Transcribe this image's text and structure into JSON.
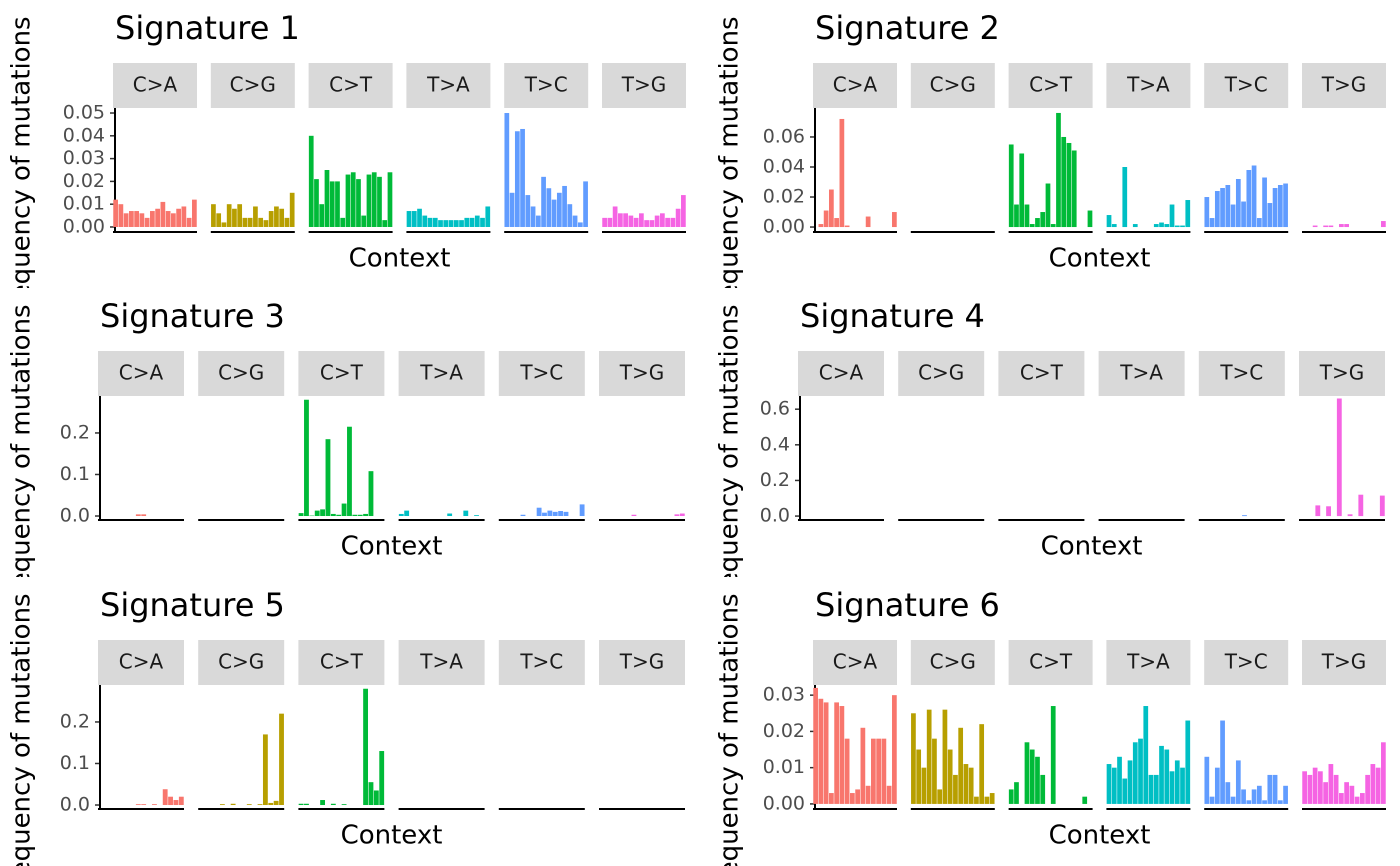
{
  "chart_data": [
    {
      "type": "bar",
      "title": "Signature 1",
      "xlabel": "Context",
      "ylabel": "Frequency of mutations",
      "ylim": [
        -0.0022,
        0.0522
      ],
      "yticks": [
        {
          "value": 0,
          "label": "0.00"
        },
        0.01,
        0.02,
        0.03,
        0.04,
        0.05
      ],
      "series": [
        {
          "name": "C>A",
          "color": "#F8766D",
          "values": [
            0.012,
            0.01,
            0.006,
            0.007,
            0.007,
            0.006,
            0.004,
            0.007,
            0.008,
            0.011,
            0.007,
            0.006,
            0.008,
            0.009,
            0.004,
            0.012
          ]
        },
        {
          "name": "C>G",
          "color": "#B79F00",
          "values": [
            0.01,
            0.006,
            0.002,
            0.01,
            0.008,
            0.01,
            0.004,
            0.004,
            0.009,
            0.004,
            0.003,
            0.007,
            0.009,
            0.008,
            0.004,
            0.015
          ]
        },
        {
          "name": "C>T",
          "color": "#00BA38",
          "values": [
            0.04,
            0.021,
            0.01,
            0.025,
            0.02,
            0.02,
            0.004,
            0.023,
            0.024,
            0.021,
            0.005,
            0.023,
            0.024,
            0.022,
            0.003,
            0.024
          ]
        },
        {
          "name": "T>A",
          "color": "#00BFC4",
          "values": [
            0.007,
            0.007,
            0.008,
            0.005,
            0.004,
            0.004,
            0.003,
            0.003,
            0.003,
            0.003,
            0.003,
            0.004,
            0.004,
            0.005,
            0.004,
            0.009
          ]
        },
        {
          "name": "T>C",
          "color": "#619CFF",
          "values": [
            0.05,
            0.015,
            0.042,
            0.043,
            0.014,
            0.009,
            0.005,
            0.022,
            0.017,
            0.012,
            0.015,
            0.018,
            0.01,
            0.005,
            0.002,
            0.02
          ]
        },
        {
          "name": "T>G",
          "color": "#F564E3",
          "values": [
            0.004,
            0.004,
            0.009,
            0.006,
            0.006,
            0.005,
            0.004,
            0.006,
            0.003,
            0.003,
            0.005,
            0.006,
            0.004,
            0.004,
            0.008,
            0.014
          ]
        }
      ]
    },
    {
      "type": "bar",
      "title": "Signature 2",
      "xlabel": "Context",
      "ylabel": "Frequency of mutations",
      "ylim": [
        -0.0033,
        0.0793
      ],
      "yticks": [
        {
          "value": 0,
          "label": "0.00"
        },
        0.02,
        0.04,
        0.06
      ],
      "series": [
        {
          "name": "C>A",
          "color": "#F8766D",
          "values": [
            0,
            0.002,
            0.011,
            0.025,
            0.006,
            0.072,
            0.001,
            0,
            0,
            0,
            0.007,
            0,
            0,
            0,
            0,
            0.01
          ]
        },
        {
          "name": "C>G",
          "color": "#B79F00",
          "values": [
            0,
            0,
            0,
            0,
            0,
            0,
            0,
            0,
            0,
            0,
            0,
            0,
            0,
            0,
            0,
            0
          ]
        },
        {
          "name": "C>T",
          "color": "#00BA38",
          "values": [
            0.055,
            0.015,
            0.049,
            0.015,
            0.002,
            0.006,
            0.01,
            0.029,
            0.002,
            0.076,
            0.06,
            0.056,
            0.051,
            0,
            0,
            0.011
          ]
        },
        {
          "name": "T>A",
          "color": "#00BFC4",
          "values": [
            0.008,
            0.002,
            0,
            0.04,
            0,
            0.002,
            0,
            0,
            0,
            0.002,
            0.003,
            0.002,
            0.015,
            0.001,
            0.001,
            0.018
          ]
        },
        {
          "name": "T>C",
          "color": "#619CFF",
          "values": [
            0.02,
            0.006,
            0.024,
            0.026,
            0.028,
            0.015,
            0.032,
            0.017,
            0.038,
            0.041,
            0.006,
            0.033,
            0.016,
            0.026,
            0.028,
            0.029
          ]
        },
        {
          "name": "T>G",
          "color": "#F564E3",
          "values": [
            0,
            0,
            0.001,
            0,
            0.001,
            0.001,
            0,
            0.002,
            0.002,
            0,
            0,
            0,
            0,
            0,
            0,
            0.004
          ]
        }
      ]
    },
    {
      "type": "bar",
      "title": "Signature 3",
      "xlabel": "Context",
      "ylabel": "Frequency of mutations",
      "ylim": [
        -0.0096,
        0.289
      ],
      "yticks": [
        {
          "value": 0,
          "label": "0.0"
        },
        0.1,
        0.2
      ],
      "series": [
        {
          "name": "C>A",
          "color": "#F8766D",
          "values": [
            0,
            0,
            0,
            0,
            0,
            0,
            0,
            0.004,
            0.004,
            0,
            0,
            0,
            0,
            0,
            0,
            0
          ]
        },
        {
          "name": "C>G",
          "color": "#B79F00",
          "values": [
            0,
            0,
            0,
            0,
            0,
            0,
            0,
            0,
            0,
            0,
            0,
            0,
            0,
            0,
            0,
            0
          ]
        },
        {
          "name": "C>T",
          "color": "#00BA38",
          "values": [
            0.007,
            0.28,
            0.001,
            0.013,
            0.016,
            0.185,
            0.005,
            0.003,
            0.03,
            0.215,
            0.003,
            0.003,
            0.005,
            0.108,
            0,
            0
          ]
        },
        {
          "name": "T>A",
          "color": "#00BFC4",
          "values": [
            0.005,
            0.013,
            0,
            0,
            0,
            0,
            0,
            0,
            0,
            0.006,
            0,
            0,
            0.013,
            0,
            0.002,
            0
          ]
        },
        {
          "name": "T>C",
          "color": "#619CFF",
          "values": [
            0,
            0,
            0,
            0,
            0.003,
            0,
            0,
            0.02,
            0.008,
            0.013,
            0.01,
            0.012,
            0.01,
            0,
            0,
            0.028
          ]
        },
        {
          "name": "T>G",
          "color": "#F564E3",
          "values": [
            0,
            0,
            0,
            0,
            0,
            0,
            0.003,
            0,
            0,
            0,
            0,
            0,
            0,
            0,
            0.004,
            0.006
          ]
        }
      ]
    },
    {
      "type": "bar",
      "title": "Signature 4",
      "xlabel": "Context",
      "ylabel": "Frequency of mutations",
      "ylim": [
        -0.022,
        0.674
      ],
      "yticks": [
        {
          "value": 0,
          "label": "0.0"
        },
        0.2,
        0.4,
        0.6
      ],
      "series": [
        {
          "name": "C>A",
          "color": "#F8766D",
          "values": [
            0,
            0,
            0,
            0,
            0,
            0,
            0,
            0,
            0,
            0,
            0,
            0,
            0,
            0,
            0,
            0
          ]
        },
        {
          "name": "C>G",
          "color": "#B79F00",
          "values": [
            0,
            0,
            0,
            0,
            0,
            0,
            0,
            0,
            0,
            0,
            0,
            0,
            0,
            0,
            0,
            0
          ]
        },
        {
          "name": "C>T",
          "color": "#00BA38",
          "values": [
            0,
            0,
            0,
            0,
            0,
            0,
            0,
            0,
            0,
            0,
            0,
            0,
            0,
            0,
            0,
            0
          ]
        },
        {
          "name": "T>A",
          "color": "#00BFC4",
          "values": [
            0,
            0,
            0,
            0,
            0,
            0,
            0,
            0,
            0,
            0,
            0,
            0,
            0,
            0,
            0,
            0
          ]
        },
        {
          "name": "T>C",
          "color": "#619CFF",
          "values": [
            0,
            0,
            0,
            0,
            0,
            0,
            0,
            0,
            0.005,
            0,
            0,
            0,
            0,
            0,
            0,
            0
          ]
        },
        {
          "name": "T>G",
          "color": "#F564E3",
          "values": [
            0,
            0,
            0,
            0.06,
            0,
            0.055,
            0,
            0.66,
            0,
            0.01,
            0,
            0.12,
            0,
            0,
            0,
            0.115
          ]
        }
      ]
    },
    {
      "type": "bar",
      "title": "Signature 5",
      "xlabel": "Context",
      "ylabel": "Frequency of mutations",
      "ylim": [
        -0.0096,
        0.289
      ],
      "yticks": [
        {
          "value": 0,
          "label": "0.0"
        },
        0.1,
        0.2
      ],
      "series": [
        {
          "name": "C>A",
          "color": "#F8766D",
          "values": [
            0,
            0,
            0,
            0,
            0,
            0,
            0,
            0.002,
            0.002,
            0,
            0.002,
            0,
            0.038,
            0.02,
            0.012,
            0.02
          ]
        },
        {
          "name": "C>G",
          "color": "#B79F00",
          "values": [
            0,
            0,
            0,
            0,
            0.002,
            0,
            0.003,
            0,
            0,
            0.002,
            0,
            0.002,
            0.17,
            0.005,
            0.01,
            0.22
          ]
        },
        {
          "name": "C>T",
          "color": "#00BA38",
          "values": [
            0.003,
            0.003,
            0,
            0,
            0.012,
            0,
            0.003,
            0,
            0.002,
            0,
            0,
            0,
            0.28,
            0.055,
            0.035,
            0.13
          ]
        },
        {
          "name": "T>A",
          "color": "#00BFC4",
          "values": [
            0,
            0,
            0,
            0,
            0,
            0,
            0,
            0,
            0,
            0,
            0,
            0,
            0,
            0,
            0,
            0
          ]
        },
        {
          "name": "T>C",
          "color": "#619CFF",
          "values": [
            0,
            0,
            0,
            0,
            0,
            0,
            0,
            0,
            0,
            0,
            0,
            0,
            0,
            0,
            0,
            0
          ]
        },
        {
          "name": "T>G",
          "color": "#F564E3",
          "values": [
            0,
            0,
            0,
            0,
            0,
            0,
            0,
            0,
            0,
            0,
            0,
            0,
            0,
            0,
            0,
            0
          ]
        }
      ]
    },
    {
      "type": "bar",
      "title": "Signature 6",
      "xlabel": "Context",
      "ylabel": "Frequency of mutations",
      "ylim": [
        -0.0014,
        0.0328
      ],
      "yticks": [
        {
          "value": 0,
          "label": "0.00"
        },
        0.01,
        0.02,
        0.03
      ],
      "series": [
        {
          "name": "C>A",
          "color": "#F8766D",
          "values": [
            0.032,
            0.029,
            0.028,
            0.003,
            0.028,
            0.027,
            0.018,
            0.003,
            0.004,
            0.021,
            0.005,
            0.018,
            0.018,
            0.018,
            0.005,
            0.03
          ]
        },
        {
          "name": "C>G",
          "color": "#B79F00",
          "values": [
            0.025,
            0.015,
            0.01,
            0.026,
            0.018,
            0.004,
            0.026,
            0.015,
            0.008,
            0.021,
            0.011,
            0.01,
            0.002,
            0.022,
            0.002,
            0.003
          ]
        },
        {
          "name": "C>T",
          "color": "#00BA38",
          "values": [
            0.004,
            0.006,
            0,
            0.017,
            0.015,
            0.013,
            0.008,
            0,
            0.027,
            0,
            0,
            0,
            0,
            0,
            0.002,
            0
          ]
        },
        {
          "name": "T>A",
          "color": "#00BFC4",
          "values": [
            0.011,
            0.01,
            0.013,
            0.007,
            0.012,
            0.017,
            0.018,
            0.027,
            0.008,
            0.008,
            0.016,
            0.015,
            0.009,
            0.012,
            0.01,
            0.023
          ]
        },
        {
          "name": "T>C",
          "color": "#619CFF",
          "values": [
            0.013,
            0.002,
            0.01,
            0.023,
            0.006,
            0.002,
            0.012,
            0.004,
            0.001,
            0.004,
            0.005,
            0.001,
            0.008,
            0.008,
            0.001,
            0.005
          ]
        },
        {
          "name": "T>G",
          "color": "#F564E3",
          "values": [
            0.009,
            0.008,
            0.01,
            0.009,
            0.006,
            0.011,
            0.008,
            0.003,
            0.006,
            0.005,
            0.002,
            0.003,
            0.008,
            0.011,
            0.01,
            0.017
          ]
        }
      ]
    }
  ]
}
